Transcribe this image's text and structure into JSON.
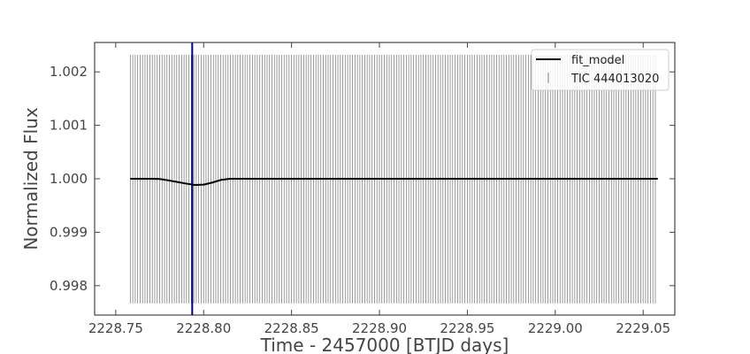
{
  "chart_data": {
    "type": "line",
    "title": "",
    "xlabel": "Time - 2457000 [BTJD days]",
    "ylabel": "Normalized Flux",
    "xlim": [
      2228.738,
      2229.068
    ],
    "ylim": [
      0.99745,
      1.00255
    ],
    "xticks": [
      2228.75,
      2228.8,
      2228.85,
      2228.9,
      2228.95,
      2229.0,
      2229.05
    ],
    "xtick_labels": [
      "2228.75",
      "2228.80",
      "2228.85",
      "2228.90",
      "2228.95",
      "2229.00",
      "2229.05"
    ],
    "yticks": [
      0.998,
      0.999,
      1.0,
      1.001,
      1.002
    ],
    "ytick_labels": [
      "0.998",
      "0.999",
      "1.000",
      "1.001",
      "1.002"
    ],
    "grid": false,
    "legend_position": "top-right",
    "series": [
      {
        "name": "fit_model",
        "kind": "line",
        "color": "#000000",
        "x": [
          2228.7583,
          2228.77,
          2228.775,
          2228.78,
          2228.785,
          2228.79,
          2228.795,
          2228.8,
          2228.805,
          2228.81,
          2228.815,
          2228.85,
          2228.9,
          2228.95,
          2229.0,
          2229.0583
        ],
        "y": [
          1.0,
          1.0,
          0.999995,
          0.99997,
          0.99994,
          0.99991,
          0.999885,
          0.99989,
          0.99993,
          0.99998,
          1.0,
          1.0,
          1.0,
          1.0,
          1.0,
          1.0
        ]
      },
      {
        "name": "TIC 444013020",
        "kind": "errorbar",
        "color": "#808080",
        "x_start": 2228.7583,
        "x_end": 2229.0583,
        "cadence": 0.0013889,
        "yerr_low": 0.99767,
        "yerr_high": 1.00232
      }
    ],
    "vline": {
      "x": 2228.7935,
      "color": "#00008b"
    }
  }
}
